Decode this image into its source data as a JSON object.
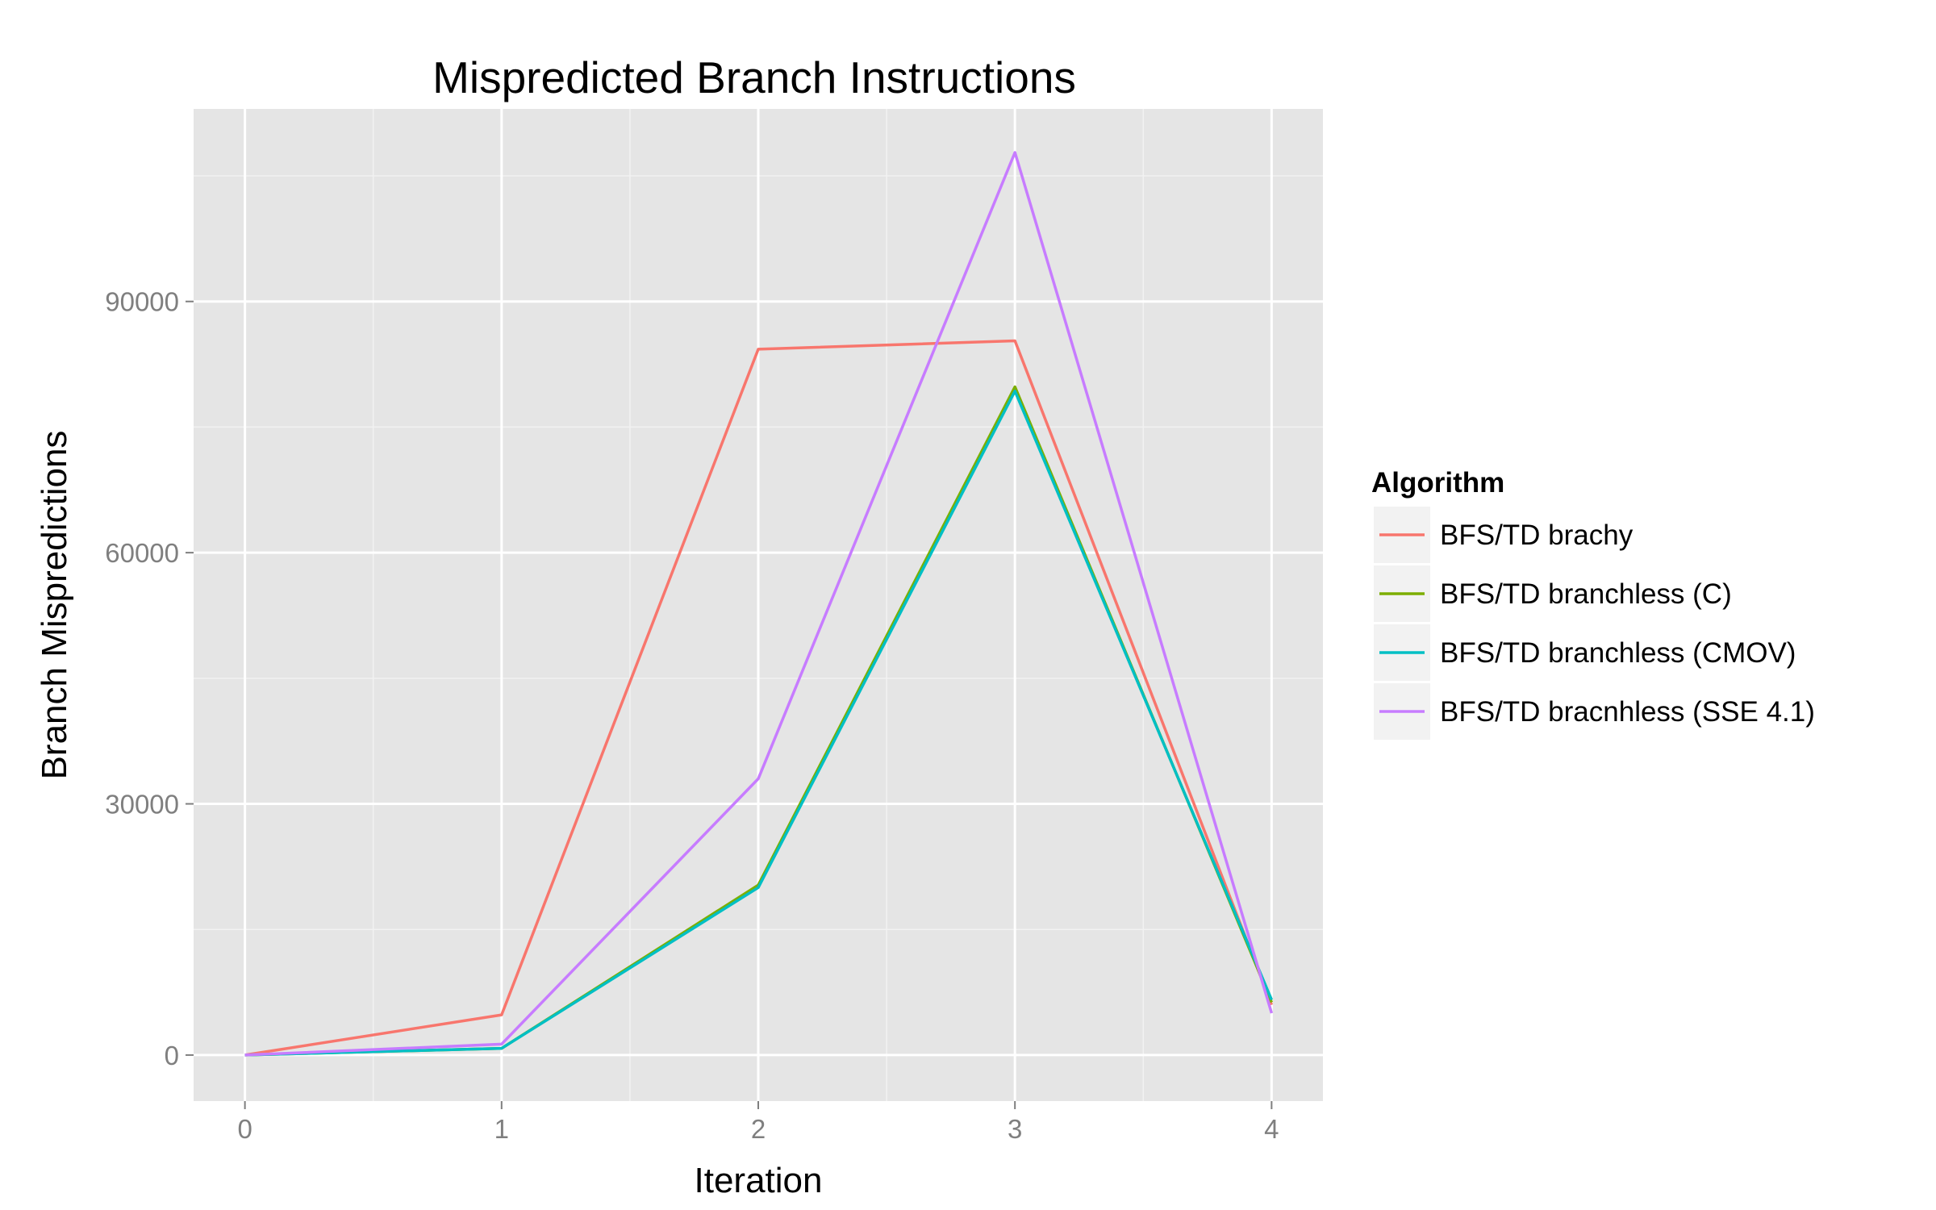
{
  "chart_data": {
    "type": "line",
    "title": "Mispredicted Branch Instructions",
    "xlabel": "Iteration",
    "ylabel": "Branch Mispredictions",
    "x": [
      0,
      1,
      2,
      3,
      4
    ],
    "xlim": [
      -0.2,
      4.2
    ],
    "ylim": [
      -5500,
      113000
    ],
    "x_ticks": [
      0,
      1,
      2,
      3,
      4
    ],
    "y_ticks": [
      0,
      30000,
      60000,
      90000
    ],
    "grid": true,
    "legend_title": "Algorithm",
    "legend_position": "right",
    "series": [
      {
        "name": "BFS/TD brachy",
        "color": "#F8766D",
        "values": [
          0,
          4800,
          84300,
          85300,
          6000
        ]
      },
      {
        "name": "BFS/TD branchless (C)",
        "color": "#7CAE00",
        "values": [
          0,
          800,
          20300,
          79800,
          6300
        ]
      },
      {
        "name": "BFS/TD branchless (CMOV)",
        "color": "#00BFC4",
        "values": [
          0,
          800,
          20000,
          79300,
          6600
        ]
      },
      {
        "name": "BFS/TD bracnhless (SSE 4.1)",
        "color": "#C77CFF",
        "values": [
          0,
          1300,
          33000,
          107800,
          5000
        ]
      }
    ]
  }
}
